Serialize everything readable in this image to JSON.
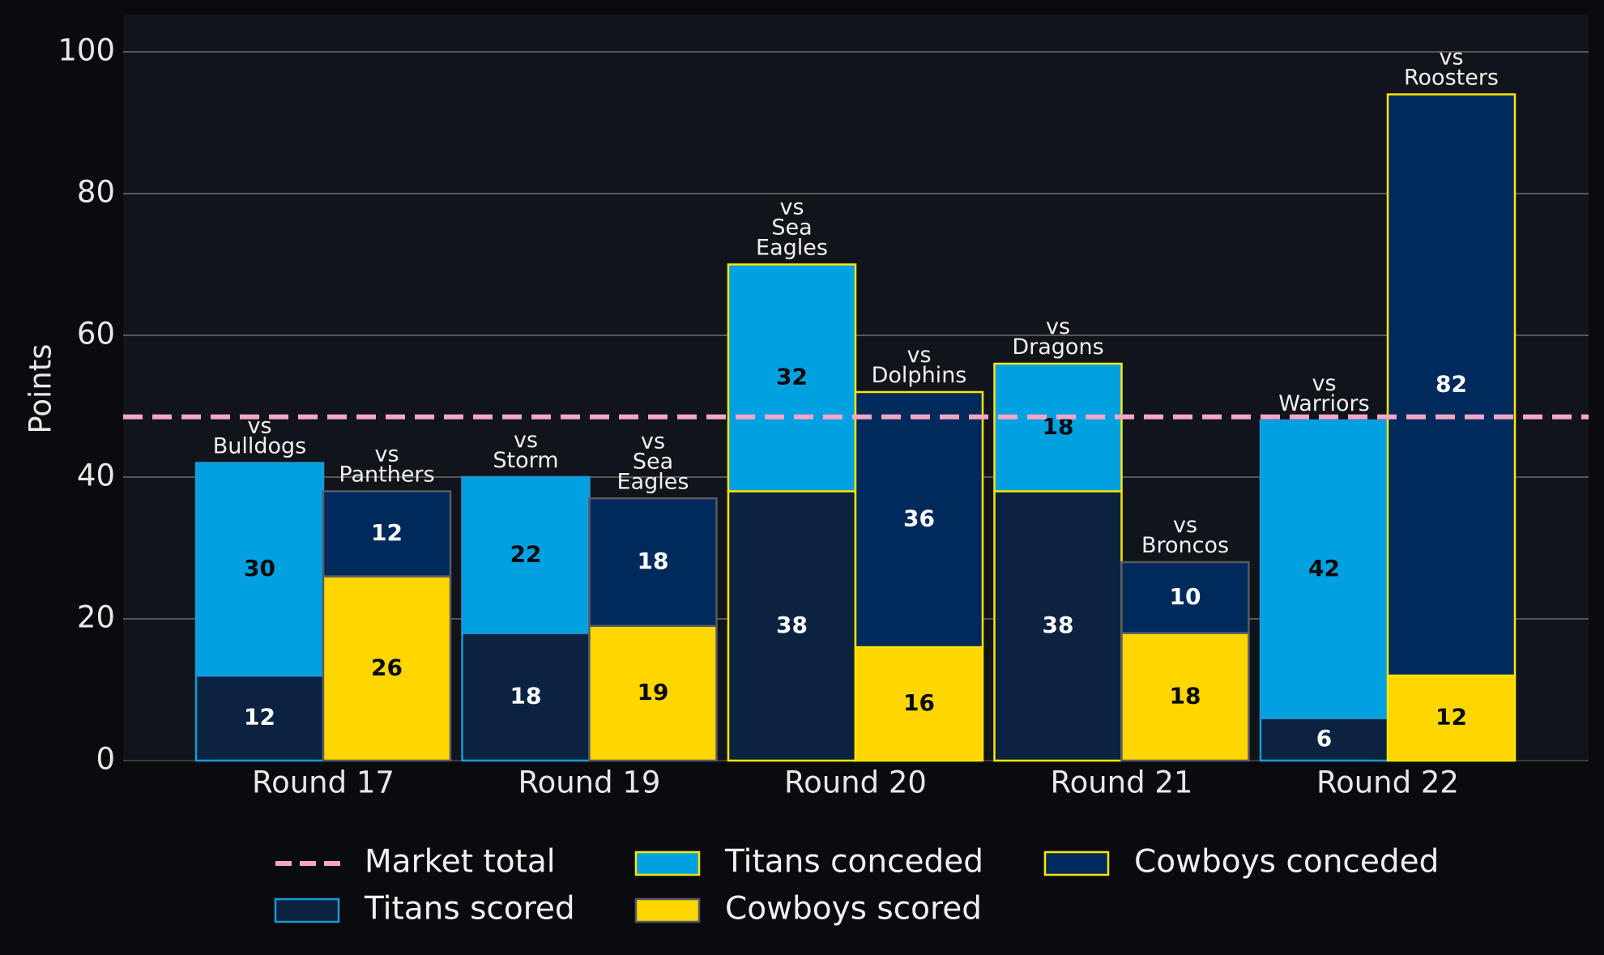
{
  "chart_data": {
    "type": "bar",
    "title": "",
    "xlabel": "",
    "ylabel": "Points",
    "ylim": [
      0,
      105
    ],
    "yticks": [
      0,
      20,
      40,
      60,
      80,
      100
    ],
    "grid": true,
    "legend_position": "bottom",
    "categories": [
      "Round 17",
      "Round 19",
      "Round 20",
      "Round 21",
      "Round 22"
    ],
    "market_total": {
      "name": "Market total",
      "value": 48.5
    },
    "titans": {
      "opponents": [
        "vs\nBulldogs",
        "vs\nStorm",
        "vs\nSea\nEagles",
        "vs\nDragons",
        "vs\nWarriors"
      ],
      "scored": {
        "name": "Titans scored",
        "values": [
          12,
          18,
          38,
          38,
          6
        ]
      },
      "conceded": {
        "name": "Titans conceded",
        "values": [
          30,
          22,
          32,
          18,
          42
        ]
      }
    },
    "cowboys": {
      "opponents": [
        "vs\nPanthers",
        "vs\nSea\nEagles",
        "vs\nDolphins",
        "vs\nBroncos",
        "vs\nRoosters"
      ],
      "scored": {
        "name": "Cowboys scored",
        "values": [
          26,
          19,
          16,
          18,
          12
        ]
      },
      "conceded": {
        "name": "Cowboys conceded",
        "values": [
          12,
          18,
          36,
          10,
          82
        ]
      }
    },
    "colors": {
      "titans_scored": "#0b2340",
      "titans_scored_edge": "#1a9ad6",
      "titans_conceded": "#00a1e0",
      "cowboys_scored": "#ffd600",
      "cowboys_scored_edge": "#5a5a66",
      "cowboys_conceded": "#002a5c",
      "highlight_edge": "#ffe600",
      "market_line": "#f4a6c8",
      "grid": "#55575c",
      "plot_bg": "#12141b",
      "page_bg": "#0a0b0e"
    }
  }
}
